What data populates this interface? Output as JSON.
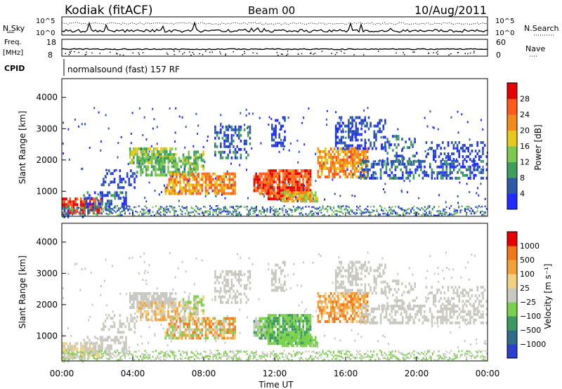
{
  "header": {
    "station": "Kodiak (fitACF)",
    "beam": "Beam 00",
    "date": "10/Aug/2011"
  },
  "top_panels": {
    "nsky_label": "N.Sky",
    "nsearch_label": "N.Search",
    "freq_label": "Freq.",
    "freq_unit": "[MHz]",
    "nave_label": "Nave",
    "cpid_label": "CPID",
    "cpid_value": "normalsound (fast) 157 RF",
    "noise_ticks": [
      "10^5",
      "10^0"
    ],
    "freq_ticks": [
      "18",
      "8"
    ],
    "nave_ticks": [
      "60",
      "0"
    ]
  },
  "time_ticks": [
    "00:00",
    "04:00",
    "08:00",
    "12:00",
    "16:00",
    "20:00",
    "00:00"
  ],
  "xlabel": "Time UT",
  "chart_data": [
    {
      "type": "heatmap",
      "name": "power",
      "ylabel": "Slant Range [km]",
      "xlabel": "Time UT",
      "ylim": [
        200,
        4600
      ],
      "yticks": [
        "1000",
        "2000",
        "3000",
        "4000"
      ],
      "colorbar_label": "Power [dB]",
      "colorbar_ticks": [
        "4",
        "8",
        "12",
        "16",
        "20",
        "24",
        "28"
      ],
      "colors": [
        "#1f2bff",
        "#2e58a8",
        "#3f9e5c",
        "#7cc850",
        "#e8c818",
        "#f28a1c",
        "#ff5a1a",
        "#e60000"
      ]
    },
    {
      "type": "heatmap",
      "name": "velocity",
      "ylabel": "Slant Range [km]",
      "xlabel": "Time UT",
      "ylim": [
        200,
        4600
      ],
      "yticks": [
        "1000",
        "2000",
        "3000",
        "4000"
      ],
      "colorbar_label": "Velocity [m s⁻¹]",
      "colorbar_ticks": [
        "1000",
        "500",
        "100",
        "25",
        "−25",
        "−100",
        "−500",
        "−1000"
      ],
      "colors": [
        "#2a3fd0",
        "#2f6b8a",
        "#3c9a60",
        "#7ad04a",
        "#c8c8c0",
        "#f2d080",
        "#f2a038",
        "#f07818",
        "#e60000"
      ]
    }
  ]
}
